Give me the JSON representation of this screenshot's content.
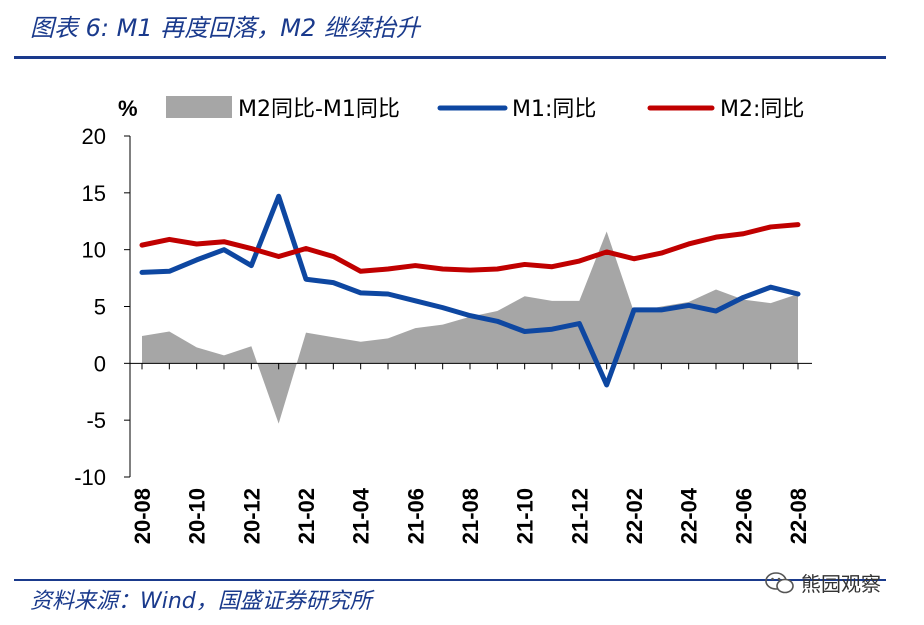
{
  "title": "图表 6:  M1 再度回落，M2 继续抬升",
  "source": "资料来源：Wind，国盛证券研究所",
  "watermark": "熊园观察",
  "chart_data": {
    "type": "line",
    "unit_label": "%",
    "ylim": [
      -10,
      20
    ],
    "yticks": [
      -10,
      -5,
      0,
      5,
      10,
      15,
      20
    ],
    "categories": [
      "20-08",
      "20-09",
      "20-10",
      "20-11",
      "20-12",
      "21-01",
      "21-02",
      "21-03",
      "21-04",
      "21-05",
      "21-06",
      "21-07",
      "21-08",
      "21-09",
      "21-10",
      "21-11",
      "21-12",
      "22-01",
      "22-02",
      "22-03",
      "22-04",
      "22-05",
      "22-06",
      "22-07",
      "22-08"
    ],
    "tick_labels": [
      "20-08",
      "20-10",
      "20-12",
      "21-02",
      "21-04",
      "21-06",
      "21-08",
      "21-10",
      "21-12",
      "22-02",
      "22-04",
      "22-06",
      "22-08"
    ],
    "series": [
      {
        "name": "M2同比-M1同比",
        "kind": "area",
        "color": "#a6a6a6",
        "values": [
          2.4,
          2.8,
          1.4,
          0.7,
          1.5,
          -5.3,
          2.7,
          2.3,
          1.9,
          2.2,
          3.1,
          3.4,
          4.1,
          4.6,
          5.9,
          5.5,
          5.5,
          11.6,
          4.5,
          5.0,
          5.4,
          6.5,
          5.6,
          5.3,
          6.1
        ]
      },
      {
        "name": "M1:同比",
        "kind": "line",
        "color": "#0e47a1",
        "values": [
          8.0,
          8.1,
          9.1,
          10.0,
          8.6,
          14.7,
          7.4,
          7.1,
          6.2,
          6.1,
          5.5,
          4.9,
          4.2,
          3.7,
          2.8,
          3.0,
          3.5,
          -1.9,
          4.7,
          4.7,
          5.1,
          4.6,
          5.8,
          6.7,
          6.1
        ]
      },
      {
        "name": "M2:同比",
        "kind": "line",
        "color": "#c00000",
        "values": [
          10.4,
          10.9,
          10.5,
          10.7,
          10.1,
          9.4,
          10.1,
          9.4,
          8.1,
          8.3,
          8.6,
          8.3,
          8.2,
          8.3,
          8.7,
          8.5,
          9.0,
          9.8,
          9.2,
          9.7,
          10.5,
          11.1,
          11.4,
          12.0,
          12.2
        ]
      }
    ]
  }
}
